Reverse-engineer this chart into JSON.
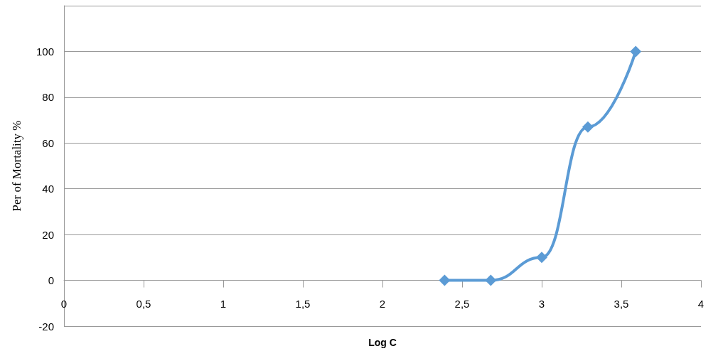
{
  "chart_data": {
    "type": "line",
    "xlabel": "Log C",
    "ylabel": "Per of Mortality %",
    "x": [
      2.39,
      2.68,
      3.0,
      3.29,
      3.59
    ],
    "series": [
      {
        "color": "#5b9bd5",
        "values": [
          0,
          0,
          10,
          67,
          100
        ]
      }
    ],
    "xlim": [
      0,
      4
    ],
    "xticks": [
      0,
      {
        "value": 0.5,
        "label": "0,5"
      },
      1,
      {
        "value": 1.5,
        "label": "1,5"
      },
      2,
      {
        "value": 2.5,
        "label": "2,5"
      },
      3,
      {
        "value": 3.5,
        "label": "3,5"
      },
      4
    ],
    "ylim": [
      -20,
      120
    ],
    "yticks": [
      -20,
      0,
      20,
      40,
      60,
      80,
      100,
      {
        "value": 120,
        "label": null
      }
    ],
    "grid": "y",
    "marker": "diamond",
    "line_style": "solid"
  }
}
